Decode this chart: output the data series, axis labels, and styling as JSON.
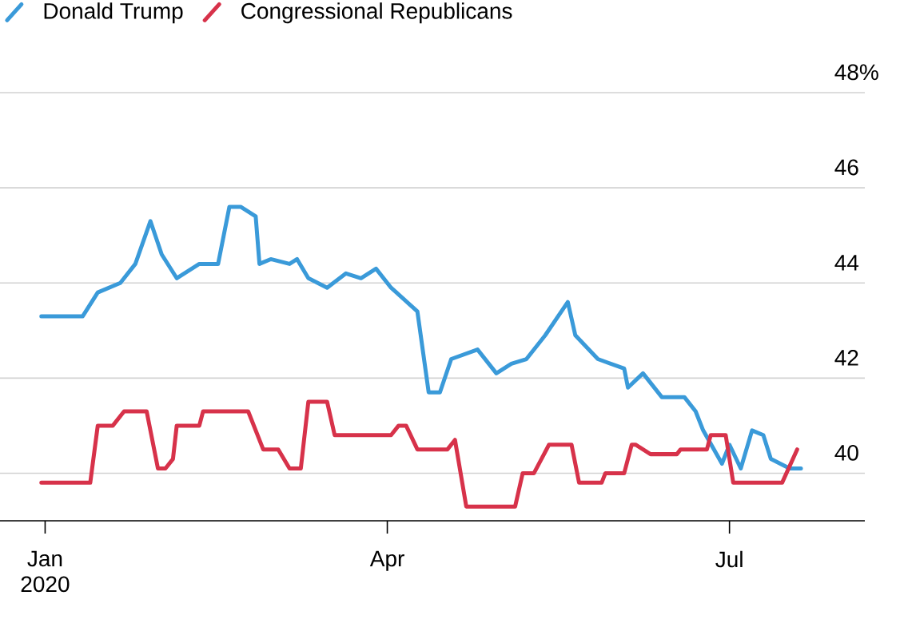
{
  "chart_data": {
    "type": "line",
    "xlim": [
      "2019-12-20",
      "2020-08-06"
    ],
    "ylim": [
      39,
      48
    ],
    "xticks": [
      {
        "value": "2020-01-01",
        "label": "Jan 2020"
      },
      {
        "value": "2020-04-01",
        "label": "Apr"
      },
      {
        "value": "2020-07-01",
        "label": "Jul"
      }
    ],
    "yticks": [
      40,
      42,
      44,
      46,
      {
        "value": 48,
        "label": "48%"
      }
    ],
    "grid": "y",
    "legend": "top left",
    "line_style": "solid",
    "marker": "none",
    "series": [
      {
        "name": "Donald Trump",
        "color": "#3a9ad9",
        "x": [
          "2019-12-31",
          "2020-01-11",
          "2020-01-15",
          "2020-01-21",
          "2020-01-25",
          "2020-01-29",
          "2020-02-01",
          "2020-02-05",
          "2020-02-11",
          "2020-02-16",
          "2020-02-19",
          "2020-02-22",
          "2020-02-24",
          "2020-02-26",
          "2020-02-27",
          "2020-03-01",
          "2020-03-06",
          "2020-03-08",
          "2020-03-11",
          "2020-03-16",
          "2020-03-21",
          "2020-03-25",
          "2020-03-29",
          "2020-04-02",
          "2020-04-09",
          "2020-04-12",
          "2020-04-15",
          "2020-04-18",
          "2020-04-25",
          "2020-04-30",
          "2020-05-04",
          "2020-05-08",
          "2020-05-13",
          "2020-05-19",
          "2020-05-21",
          "2020-05-27",
          "2020-06-03",
          "2020-06-04",
          "2020-06-08",
          "2020-06-13",
          "2020-06-19",
          "2020-06-22",
          "2020-06-24",
          "2020-06-29",
          "2020-07-01",
          "2020-07-04",
          "2020-07-07",
          "2020-07-10",
          "2020-07-12",
          "2020-07-17",
          "2020-07-20"
        ],
        "values": [
          43.3,
          43.3,
          43.8,
          44.0,
          44.4,
          45.3,
          44.6,
          44.1,
          44.4,
          44.4,
          45.6,
          45.6,
          45.5,
          45.4,
          44.4,
          44.5,
          44.4,
          44.5,
          44.1,
          43.9,
          44.2,
          44.1,
          44.3,
          43.9,
          43.4,
          41.7,
          41.7,
          42.4,
          42.6,
          42.1,
          42.3,
          42.4,
          42.9,
          43.6,
          42.9,
          42.4,
          42.2,
          41.8,
          42.1,
          41.6,
          41.6,
          41.3,
          40.9,
          40.2,
          40.6,
          40.1,
          40.9,
          40.8,
          40.3,
          40.1,
          40.1
        ]
      },
      {
        "name": "Congressional Republicans",
        "color": "#d7324a",
        "x": [
          "2019-12-31",
          "2020-01-13",
          "2020-01-15",
          "2020-01-19",
          "2020-01-22",
          "2020-01-28",
          "2020-01-31",
          "2020-02-02",
          "2020-02-04",
          "2020-02-05",
          "2020-02-11",
          "2020-02-12",
          "2020-02-24",
          "2020-02-28",
          "2020-03-03",
          "2020-03-06",
          "2020-03-09",
          "2020-03-11",
          "2020-03-16",
          "2020-03-18",
          "2020-04-02",
          "2020-04-04",
          "2020-04-06",
          "2020-04-09",
          "2020-04-17",
          "2020-04-19",
          "2020-04-22",
          "2020-05-05",
          "2020-05-07",
          "2020-05-10",
          "2020-05-12",
          "2020-05-14",
          "2020-05-20",
          "2020-05-22",
          "2020-05-28",
          "2020-05-29",
          "2020-06-03",
          "2020-06-05",
          "2020-06-06",
          "2020-06-10",
          "2020-06-17",
          "2020-06-18",
          "2020-06-25",
          "2020-06-26",
          "2020-06-30",
          "2020-07-02",
          "2020-07-15",
          "2020-07-19"
        ],
        "values": [
          39.8,
          39.8,
          41.0,
          41.0,
          41.3,
          41.3,
          40.1,
          40.1,
          40.3,
          41.0,
          41.0,
          41.3,
          41.3,
          40.5,
          40.5,
          40.1,
          40.1,
          41.5,
          41.5,
          40.8,
          40.8,
          41.0,
          41.0,
          40.5,
          40.5,
          40.7,
          39.3,
          39.3,
          40.0,
          40.0,
          40.3,
          40.6,
          40.6,
          39.8,
          39.8,
          40.0,
          40.0,
          40.6,
          40.6,
          40.4,
          40.4,
          40.5,
          40.5,
          40.8,
          40.8,
          39.8,
          39.8,
          40.5
        ]
      }
    ]
  }
}
